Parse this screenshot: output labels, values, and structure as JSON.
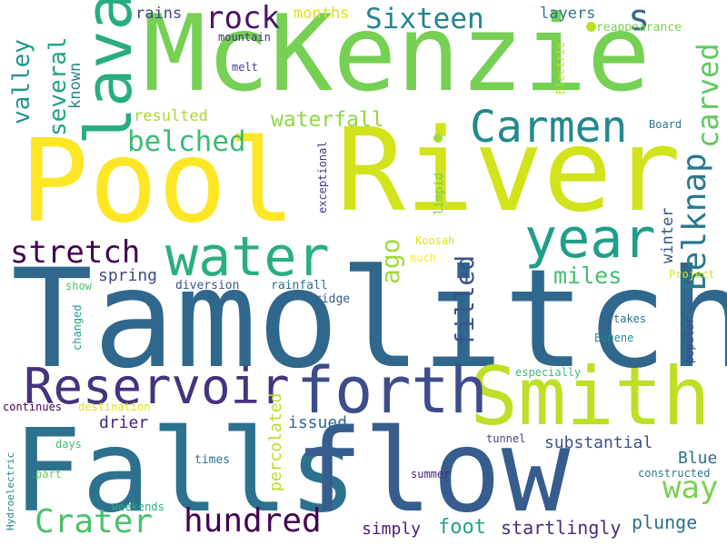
{
  "words": [
    {
      "text": "Tamolitch",
      "color": "#30678d"
    },
    {
      "text": "Pool",
      "color": "#fde725"
    },
    {
      "text": "River",
      "color": "#d2e21b"
    },
    {
      "text": "McKenzie",
      "color": "#75d054"
    },
    {
      "text": "Falls",
      "color": "#2c728e"
    },
    {
      "text": "flow",
      "color": "#365d8d"
    },
    {
      "text": "Smith",
      "color": "#bddf26"
    },
    {
      "text": "forth",
      "color": "#3e4c8a"
    },
    {
      "text": "Reservoir",
      "color": "#46337e"
    },
    {
      "text": "water",
      "color": "#29af7f"
    },
    {
      "text": "year",
      "color": "#1f9e89"
    },
    {
      "text": "lava",
      "color": "#27ad81"
    },
    {
      "text": "Carmen",
      "color": "#23898e"
    },
    {
      "text": "Crater",
      "color": "#4ac16d"
    },
    {
      "text": "hundred",
      "color": "#440154"
    },
    {
      "text": "way",
      "color": "#7ad151"
    },
    {
      "text": "Belknap",
      "color": "#2a788e"
    },
    {
      "text": "stretch",
      "color": "#440154"
    },
    {
      "text": "belched",
      "color": "#3bbb75"
    },
    {
      "text": "Sixteen",
      "color": "#25838e"
    },
    {
      "text": "rock",
      "color": "#481668"
    },
    {
      "text": "carved",
      "color": "#5ec962"
    },
    {
      "text": "valley",
      "color": "#1f968b"
    },
    {
      "text": "several",
      "color": "#20a486"
    },
    {
      "text": "filled",
      "color": "#3b528b"
    },
    {
      "text": "ago",
      "color": "#a0da39"
    },
    {
      "text": "miles",
      "color": "#42be71"
    },
    {
      "text": "waterfall",
      "color": "#8fd744"
    },
    {
      "text": "plunge",
      "color": "#2c718e"
    },
    {
      "text": "foot",
      "color": "#20a386"
    },
    {
      "text": "startlingly",
      "color": "#472d7b"
    },
    {
      "text": "substantial",
      "color": "#3b528b"
    },
    {
      "text": "percolated",
      "color": "#b5de2b"
    },
    {
      "text": "simply",
      "color": "#481f71"
    },
    {
      "text": "Blue",
      "color": "#2d708e"
    },
    {
      "text": "spring",
      "color": "#3e4a89"
    },
    {
      "text": "drier",
      "color": "#482677"
    },
    {
      "text": "issued",
      "color": "#31688e"
    },
    {
      "text": "winter",
      "color": "#3b528b"
    },
    {
      "text": "known",
      "color": "#26828e"
    },
    {
      "text": "resulted",
      "color": "#a5db36"
    },
    {
      "text": "rains",
      "color": "#404688"
    },
    {
      "text": "months",
      "color": "#dde318"
    },
    {
      "text": "layers",
      "color": "#2a778e"
    },
    {
      "text": "s",
      "color": "#31688e"
    },
    {
      "text": "reappearance",
      "color": "#7ad151"
    },
    {
      "text": "mountain",
      "color": "#472f7d"
    },
    {
      "text": "melt",
      "color": "#433e85"
    },
    {
      "text": "Electric",
      "color": "#c2df23"
    },
    {
      "text": "Board",
      "color": "#2a768e"
    },
    {
      "text": "exceptional",
      "color": "#443983"
    },
    {
      "text": "limpid",
      "color": "#6ece58"
    },
    {
      "text": "Koosah",
      "color": "#d8e219"
    },
    {
      "text": "much",
      "color": "#fde725"
    },
    {
      "text": "Project",
      "color": "#d2e21b"
    },
    {
      "text": "show",
      "color": "#4ac16d"
    },
    {
      "text": "diversion",
      "color": "#3b528b"
    },
    {
      "text": "rainfall",
      "color": "#2c718e"
    },
    {
      "text": "ridge",
      "color": "#365c8d"
    },
    {
      "text": "changed",
      "color": "#1fa088"
    },
    {
      "text": "takes",
      "color": "#2e6e8e"
    },
    {
      "text": "Eugene",
      "color": "#23888e"
    },
    {
      "text": "popular",
      "color": "#414487"
    },
    {
      "text": "especially",
      "color": "#3cbb75"
    },
    {
      "text": "continues",
      "color": "#440154"
    },
    {
      "text": "destination",
      "color": "#dde318"
    },
    {
      "text": "days",
      "color": "#42be71"
    },
    {
      "text": "times",
      "color": "#2d708e"
    },
    {
      "text": "tunnel",
      "color": "#414487"
    },
    {
      "text": "summer",
      "color": "#482878"
    },
    {
      "text": "constructed",
      "color": "#2a788e"
    },
    {
      "text": "Hydroelectric",
      "color": "#25848e"
    },
    {
      "text": "part",
      "color": "#5ec962"
    },
    {
      "text": "weekends",
      "color": "#29af7f"
    }
  ],
  "dots": [
    {
      "color": "#a0da39"
    },
    {
      "color": "#bddf26"
    }
  ]
}
